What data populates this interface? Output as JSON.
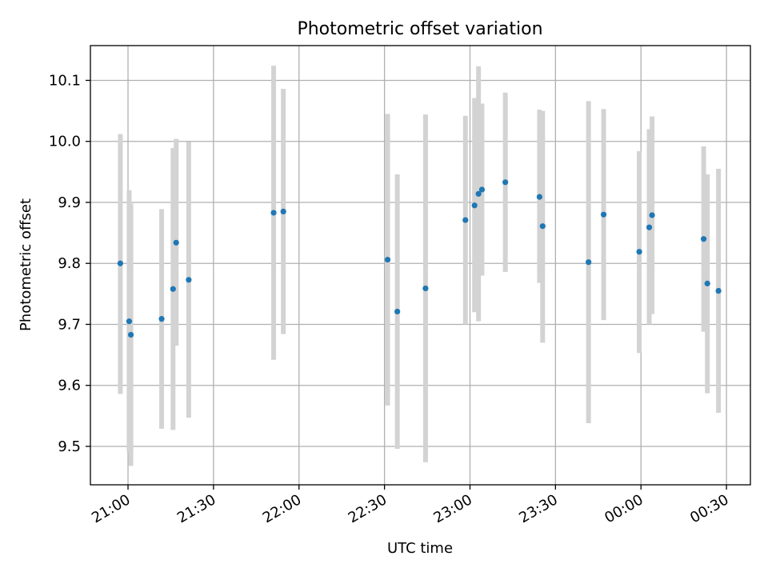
{
  "chart_data": {
    "type": "scatter",
    "title": "Photometric offset variation",
    "xlabel": "UTC time",
    "ylabel": "Photometric offset",
    "grid": true,
    "x_tick_labels": [
      "21:00",
      "21:30",
      "22:00",
      "22:30",
      "23:00",
      "23:30",
      "00:00",
      "00:30"
    ],
    "x_tick_values_min": [
      0,
      30,
      60,
      90,
      120,
      150,
      180,
      210
    ],
    "xlim_min": [
      -13.2,
      218.4
    ],
    "y_ticks": [
      9.5,
      9.6,
      9.7,
      9.8,
      9.9,
      10.0,
      10.1
    ],
    "y_tick_labels": [
      "9.5",
      "9.6",
      "9.7",
      "9.8",
      "9.9",
      "10.0",
      "10.1"
    ],
    "ylim": [
      9.437,
      10.157
    ],
    "colors": {
      "point": "#1f77b4",
      "errorbar": "#d3d3d3"
    },
    "points": [
      {
        "t": -2.7,
        "y": 9.8,
        "ylo": 9.586,
        "yhi": 10.012
      },
      {
        "t": 0.4,
        "y": 9.705,
        "ylo": 9.49,
        "yhi": 9.92
      },
      {
        "t": 1.0,
        "y": 9.683,
        "ylo": 9.468,
        "yhi": 9.898
      },
      {
        "t": 11.8,
        "y": 9.709,
        "ylo": 9.529,
        "yhi": 9.889
      },
      {
        "t": 15.8,
        "y": 9.758,
        "ylo": 9.527,
        "yhi": 9.989
      },
      {
        "t": 16.9,
        "y": 9.834,
        "ylo": 9.665,
        "yhi": 10.004
      },
      {
        "t": 21.3,
        "y": 9.773,
        "ylo": 9.547,
        "yhi": 9.999
      },
      {
        "t": 51.1,
        "y": 9.883,
        "ylo": 9.642,
        "yhi": 10.124
      },
      {
        "t": 54.5,
        "y": 9.885,
        "ylo": 9.684,
        "yhi": 10.086
      },
      {
        "t": 91.1,
        "y": 9.806,
        "ylo": 9.567,
        "yhi": 10.045
      },
      {
        "t": 94.5,
        "y": 9.721,
        "ylo": 9.496,
        "yhi": 9.946
      },
      {
        "t": 104.4,
        "y": 9.759,
        "ylo": 9.474,
        "yhi": 10.044
      },
      {
        "t": 118.4,
        "y": 9.871,
        "ylo": 9.7,
        "yhi": 10.042
      },
      {
        "t": 121.6,
        "y": 9.895,
        "ylo": 9.72,
        "yhi": 10.071
      },
      {
        "t": 123.0,
        "y": 9.914,
        "ylo": 9.705,
        "yhi": 10.123
      },
      {
        "t": 124.2,
        "y": 9.921,
        "ylo": 9.78,
        "yhi": 10.062
      },
      {
        "t": 132.4,
        "y": 9.933,
        "ylo": 9.786,
        "yhi": 10.08
      },
      {
        "t": 144.4,
        "y": 9.909,
        "ylo": 9.768,
        "yhi": 10.052
      },
      {
        "t": 145.5,
        "y": 9.861,
        "ylo": 9.67,
        "yhi": 10.05
      },
      {
        "t": 161.6,
        "y": 9.802,
        "ylo": 9.538,
        "yhi": 10.066
      },
      {
        "t": 166.9,
        "y": 9.88,
        "ylo": 9.707,
        "yhi": 10.053
      },
      {
        "t": 179.4,
        "y": 9.819,
        "ylo": 9.653,
        "yhi": 9.984
      },
      {
        "t": 182.9,
        "y": 9.859,
        "ylo": 9.7,
        "yhi": 10.02
      },
      {
        "t": 183.9,
        "y": 9.879,
        "ylo": 9.717,
        "yhi": 10.041
      },
      {
        "t": 202.0,
        "y": 9.84,
        "ylo": 9.688,
        "yhi": 9.992
      },
      {
        "t": 203.3,
        "y": 9.767,
        "ylo": 9.587,
        "yhi": 9.946
      },
      {
        "t": 207.2,
        "y": 9.755,
        "ylo": 9.555,
        "yhi": 9.955
      }
    ]
  }
}
